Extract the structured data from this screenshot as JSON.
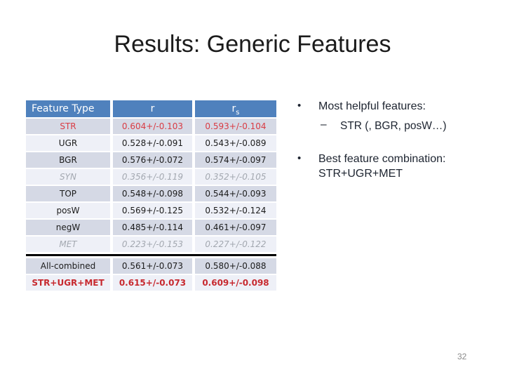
{
  "slide": {
    "title": "Results: Generic Features",
    "page_number": "32"
  },
  "table": {
    "headers": [
      {
        "label": "Feature Type"
      },
      {
        "label": "r"
      },
      {
        "label": "r",
        "subscript": "s"
      }
    ],
    "rows": [
      {
        "feature": "STR",
        "r": "0.604+/-0.103",
        "rs": "0.593+/-0.104",
        "style": "highlight-red"
      },
      {
        "feature": "UGR",
        "r": "0.528+/-0.091",
        "rs": "0.543+/-0.089",
        "style": "normal"
      },
      {
        "feature": "BGR",
        "r": "0.576+/-0.072",
        "rs": "0.574+/-0.097",
        "style": "normal"
      },
      {
        "feature": "SYN",
        "r": "0.356+/-0.119",
        "rs": "0.352+/-0.105",
        "style": "muted-italic"
      },
      {
        "feature": "TOP",
        "r": "0.548+/-0.098",
        "rs": "0.544+/-0.093",
        "style": "normal"
      },
      {
        "feature": "posW",
        "r": "0.569+/-0.125",
        "rs": "0.532+/-0.124",
        "style": "normal"
      },
      {
        "feature": "negW",
        "r": "0.485+/-0.114",
        "rs": "0.461+/-0.097",
        "style": "normal"
      },
      {
        "feature": "MET",
        "r": "0.223+/-0.153",
        "rs": "0.227+/-0.122",
        "style": "muted-italic",
        "separator_below": true
      },
      {
        "feature": "All-combined",
        "r": "0.561+/-0.073",
        "rs": "0.580+/-0.088",
        "style": "normal"
      },
      {
        "feature": "STR+UGR+MET",
        "r": "0.615+/-0.073",
        "rs": "0.609+/-0.098",
        "style": "bold-red"
      }
    ]
  },
  "bullets": {
    "bullet_glyph": "•",
    "dash_glyph": "–",
    "item1": "Most helpful features:",
    "item1_sub": "STR (, BGR, posW…)",
    "item2_line1": "Best feature combination:",
    "item2_line2": "STR+UGR+MET"
  },
  "colors": {
    "header_bg": "#4f81bd",
    "row_dark": "#d5d9e5",
    "row_light": "#eef0f7",
    "red_text": "#d93c44",
    "bold_red_text": "#c7292f",
    "muted_text": "#a3a8b0"
  }
}
